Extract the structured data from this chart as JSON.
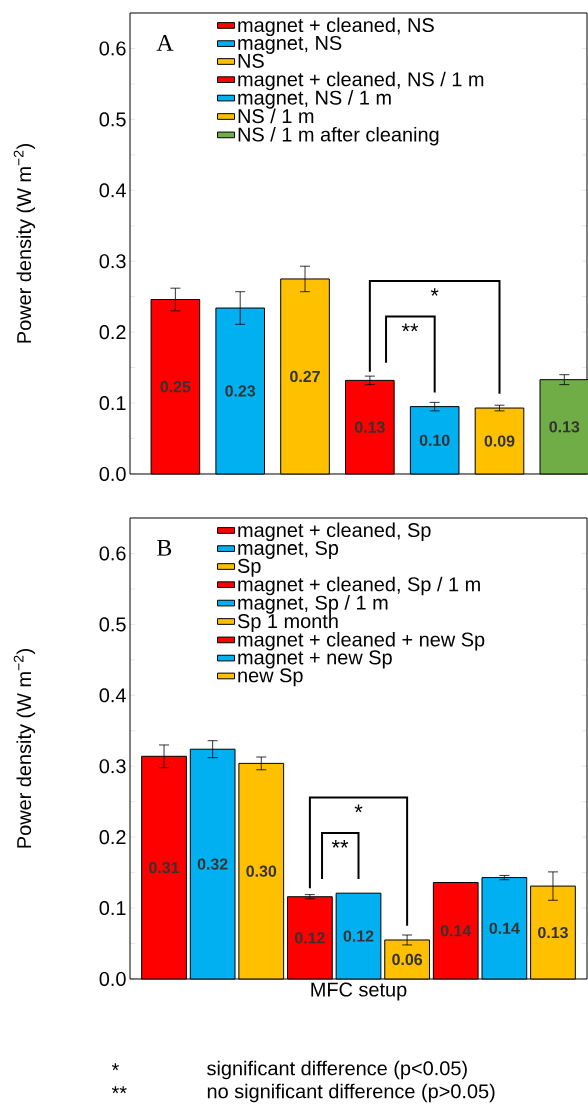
{
  "chart_data": [
    {
      "type": "bar",
      "title": "A",
      "ylabel": "Power density (W m$^{−2}$)",
      "categories": [
        null,
        null,
        null,
        null,
        null,
        null,
        null
      ],
      "series": [
        {
          "name": "magnet + cleaned, NS",
          "color": "#ff0000",
          "values": [
            0.246,
            null,
            null,
            null,
            null,
            null,
            null
          ],
          "errors": [
            0.016,
            null,
            null,
            null,
            null,
            null,
            null
          ],
          "value_labels": [
            "0.25",
            null,
            null,
            null,
            null,
            null,
            null
          ]
        },
        {
          "name": "magnet, NS",
          "color": "#00b0f0",
          "values": [
            null,
            0.234,
            null,
            null,
            null,
            null,
            null
          ],
          "errors": [
            null,
            0.023,
            null,
            null,
            null,
            null,
            null
          ],
          "value_labels": [
            null,
            "0.23",
            null,
            null,
            null,
            null,
            null
          ]
        },
        {
          "name": "NS",
          "color": "#ffc000",
          "values": [
            null,
            null,
            0.275,
            null,
            null,
            null,
            null
          ],
          "errors": [
            null,
            null,
            0.018,
            null,
            null,
            null,
            null
          ],
          "value_labels": [
            null,
            null,
            "0.27",
            null,
            null,
            null,
            null
          ]
        },
        {
          "name": "magnet + cleaned, NS / 1 m",
          "color": "#ff0000",
          "values": [
            null,
            null,
            null,
            0.132,
            null,
            null,
            null
          ],
          "errors": [
            null,
            null,
            null,
            0.006,
            null,
            null,
            null
          ],
          "value_labels": [
            null,
            null,
            null,
            "0.13",
            null,
            null,
            null
          ]
        },
        {
          "name": "magnet, NS / 1 m",
          "color": "#00b0f0",
          "values": [
            null,
            null,
            null,
            null,
            0.095,
            null,
            null
          ],
          "errors": [
            null,
            null,
            null,
            null,
            0.006,
            null,
            null
          ],
          "value_labels": [
            null,
            null,
            null,
            null,
            "0.10",
            null,
            null
          ]
        },
        {
          "name": "NS / 1 m",
          "color": "#ffc000",
          "values": [
            null,
            null,
            null,
            null,
            null,
            0.093,
            null
          ],
          "errors": [
            null,
            null,
            null,
            null,
            null,
            0.004,
            null
          ],
          "value_labels": [
            null,
            null,
            null,
            null,
            null,
            "0.09",
            null
          ]
        },
        {
          "name": "NS / 1 m after cleaning",
          "color": "#70ad47",
          "values": [
            null,
            null,
            null,
            null,
            null,
            null,
            0.133
          ],
          "errors": [
            null,
            null,
            null,
            null,
            null,
            null,
            0.007
          ],
          "value_labels": [
            null,
            null,
            null,
            null,
            null,
            null,
            "0.13"
          ]
        }
      ],
      "ylim": [
        0,
        0.65
      ],
      "yticks": [
        {
          "value": 0,
          "label": "0.0"
        },
        {
          "value": 0.05,
          "label": null
        },
        {
          "value": 0.1,
          "label": "0.1"
        },
        {
          "value": 0.15,
          "label": null
        },
        {
          "value": 0.2,
          "label": "0.2"
        },
        {
          "value": 0.25,
          "label": null
        },
        {
          "value": 0.3,
          "label": "0.3"
        },
        {
          "value": 0.35,
          "label": null
        },
        {
          "value": 0.4,
          "label": "0.4"
        },
        {
          "value": 0.45,
          "label": null
        },
        {
          "value": 0.5,
          "label": "0.5"
        },
        {
          "value": 0.55,
          "label": null
        },
        {
          "value": 0.6,
          "label": "0.6"
        }
      ],
      "stacked": true,
      "legend": "top",
      "annotations": [
        "*",
        "**"
      ]
    },
    {
      "type": "bar",
      "title": "B",
      "xlabel": "MFC setup",
      "ylabel": "Power density (W m$^{−2}$)",
      "categories": [
        null,
        null,
        null,
        null,
        null,
        null,
        null,
        null,
        null
      ],
      "series": [
        {
          "name": "magnet + cleaned, Sp",
          "color": "#ff0000",
          "values": [
            0.314,
            null,
            null,
            null,
            null,
            null,
            null,
            null,
            null
          ],
          "errors": [
            0.016,
            null,
            null,
            null,
            null,
            null,
            null,
            null,
            null
          ],
          "value_labels": [
            "0.31",
            null,
            null,
            null,
            null,
            null,
            null,
            null,
            null
          ]
        },
        {
          "name": "magnet, Sp",
          "color": "#00b0f0",
          "values": [
            null,
            0.324,
            null,
            null,
            null,
            null,
            null,
            null,
            null
          ],
          "errors": [
            null,
            0.012,
            null,
            null,
            null,
            null,
            null,
            null,
            null
          ],
          "value_labels": [
            null,
            "0.32",
            null,
            null,
            null,
            null,
            null,
            null,
            null
          ]
        },
        {
          "name": "Sp",
          "color": "#ffc000",
          "values": [
            null,
            null,
            0.304,
            null,
            null,
            null,
            null,
            null,
            null
          ],
          "errors": [
            null,
            null,
            0.009,
            null,
            null,
            null,
            null,
            null,
            null
          ],
          "value_labels": [
            null,
            null,
            "0.30",
            null,
            null,
            null,
            null,
            null,
            null
          ]
        },
        {
          "name": "magnet + cleaned, Sp / 1 m",
          "color": "#ff0000",
          "values": [
            null,
            null,
            null,
            0.116,
            null,
            null,
            null,
            null,
            null
          ],
          "errors": [
            null,
            null,
            null,
            0.003,
            null,
            null,
            null,
            null,
            null
          ],
          "value_labels": [
            null,
            null,
            null,
            "0.12",
            null,
            null,
            null,
            null,
            null
          ]
        },
        {
          "name": "magnet, Sp / 1 m",
          "color": "#00b0f0",
          "values": [
            null,
            null,
            null,
            null,
            0.121,
            null,
            null,
            null,
            null
          ],
          "errors": [
            null,
            null,
            null,
            null,
            null,
            null,
            null,
            null,
            null
          ],
          "value_labels": [
            null,
            null,
            null,
            null,
            "0.12",
            null,
            null,
            null,
            null
          ]
        },
        {
          "name": "Sp 1 month",
          "color": "#ffc000",
          "values": [
            null,
            null,
            null,
            null,
            null,
            0.055,
            null,
            null,
            null
          ],
          "errors": [
            null,
            null,
            null,
            null,
            null,
            0.007,
            null,
            null,
            null
          ],
          "value_labels": [
            null,
            null,
            null,
            null,
            null,
            "0.06",
            null,
            null,
            null
          ]
        },
        {
          "name": "magnet + cleaned + new Sp",
          "color": "#ff0000",
          "values": [
            null,
            null,
            null,
            null,
            null,
            null,
            0.136,
            null,
            null
          ],
          "errors": [
            null,
            null,
            null,
            null,
            null,
            null,
            null,
            null,
            null
          ],
          "value_labels": [
            null,
            null,
            null,
            null,
            null,
            null,
            "0.14",
            null,
            null
          ]
        },
        {
          "name": "magnet + new Sp",
          "color": "#00b0f0",
          "values": [
            null,
            null,
            null,
            null,
            null,
            null,
            null,
            0.143,
            null
          ],
          "errors": [
            null,
            null,
            null,
            null,
            null,
            null,
            null,
            0.003,
            null
          ],
          "value_labels": [
            null,
            null,
            null,
            null,
            null,
            null,
            null,
            "0.14",
            null
          ]
        },
        {
          "name": "new Sp",
          "color": "#ffc000",
          "values": [
            null,
            null,
            null,
            null,
            null,
            null,
            null,
            null,
            0.131
          ],
          "errors": [
            null,
            null,
            null,
            null,
            null,
            null,
            null,
            null,
            0.02
          ],
          "value_labels": [
            null,
            null,
            null,
            null,
            null,
            null,
            null,
            null,
            "0.13"
          ]
        }
      ],
      "ylim": [
        0,
        0.65
      ],
      "yticks": [
        {
          "value": 0,
          "label": "0.0"
        },
        {
          "value": 0.05,
          "label": null
        },
        {
          "value": 0.1,
          "label": "0.1"
        },
        {
          "value": 0.15,
          "label": null
        },
        {
          "value": 0.2,
          "label": "0.2"
        },
        {
          "value": 0.25,
          "label": null
        },
        {
          "value": 0.3,
          "label": "0.3"
        },
        {
          "value": 0.35,
          "label": null
        },
        {
          "value": 0.4,
          "label": "0.4"
        },
        {
          "value": 0.45,
          "label": null
        },
        {
          "value": 0.5,
          "label": "0.5"
        },
        {
          "value": 0.55,
          "label": null
        },
        {
          "value": 0.6,
          "label": "0.6"
        }
      ],
      "stacked": true,
      "legend": "top",
      "annotations": [
        "*",
        "**",
        "*",
        "significant difference (p<0.05)",
        "**",
        "no significant difference (p>0.05)"
      ]
    }
  ]
}
